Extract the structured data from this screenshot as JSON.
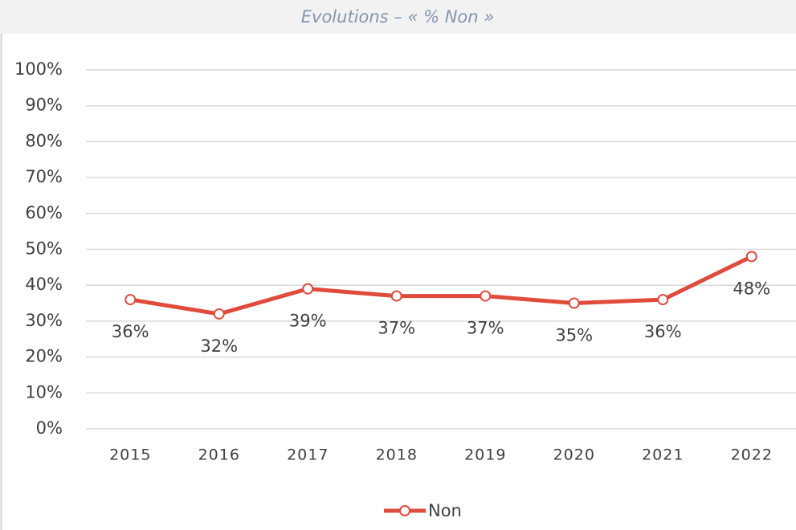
{
  "chart_data": {
    "type": "line",
    "title": "Evolutions – « % Non »",
    "categories": [
      "2015",
      "2016",
      "2017",
      "2018",
      "2019",
      "2020",
      "2021",
      "2022"
    ],
    "series": [
      {
        "name": "Non",
        "color": "#e04b3c",
        "values": [
          36,
          32,
          39,
          37,
          37,
          35,
          36,
          48
        ],
        "value_labels": [
          "36%",
          "32%",
          "39%",
          "37%",
          "37%",
          "35%",
          "36%",
          "48%"
        ]
      }
    ],
    "ylim": [
      0,
      100
    ],
    "yticks": [
      {
        "value": 0,
        "label": "0%"
      },
      {
        "value": 10,
        "label": "10%"
      },
      {
        "value": 20,
        "label": "20%"
      },
      {
        "value": 30,
        "label": "30%"
      },
      {
        "value": 40,
        "label": "40%"
      },
      {
        "value": 50,
        "label": "50%"
      },
      {
        "value": 60,
        "label": "60%"
      },
      {
        "value": 70,
        "label": "70%"
      },
      {
        "value": 80,
        "label": "80%"
      },
      {
        "value": 90,
        "label": "90%"
      },
      {
        "value": 100,
        "label": "100%"
      }
    ],
    "grid": true,
    "legend": "bottom"
  }
}
